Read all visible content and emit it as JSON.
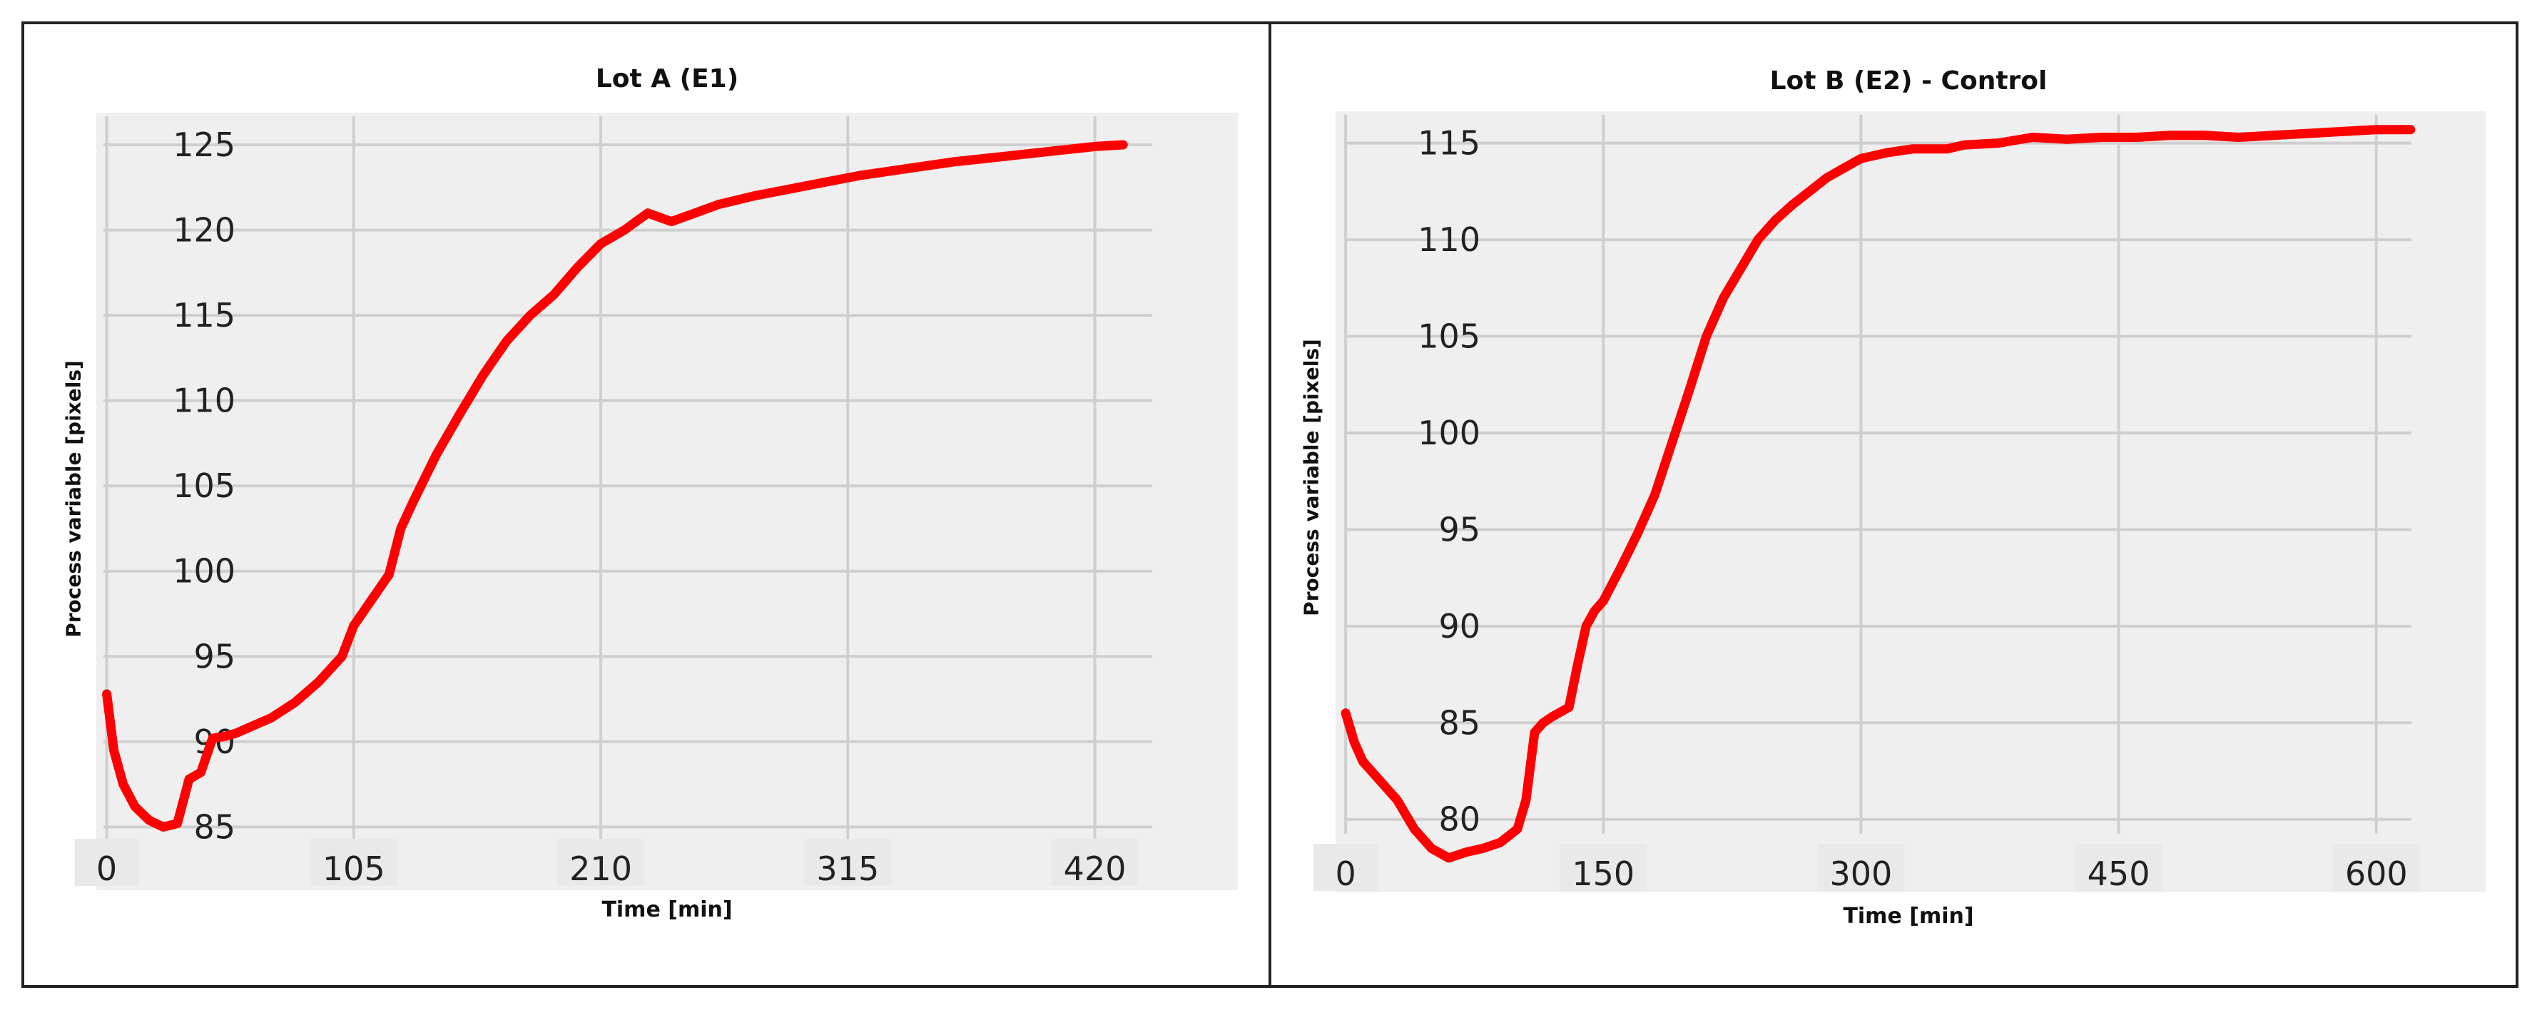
{
  "chart_data": [
    {
      "type": "line",
      "title": "Lot A (E1)",
      "xlabel": "Time [min]",
      "ylabel": "Process variable [pixels]",
      "xticks": [
        0,
        105,
        210,
        315,
        420
      ],
      "yticks": [
        85,
        90,
        95,
        100,
        105,
        110,
        115,
        120,
        125
      ],
      "xlim": [
        -12,
        455
      ],
      "ylim": [
        83.3,
        126.8
      ],
      "grid": true,
      "series": [
        {
          "color": "#ff0000",
          "x": [
            0,
            3,
            7,
            12,
            18,
            24,
            30,
            35,
            40,
            45,
            50,
            55,
            60,
            70,
            80,
            90,
            100,
            105,
            110,
            120,
            125,
            130,
            140,
            150,
            160,
            170,
            180,
            190,
            200,
            210,
            220,
            230,
            240,
            250,
            260,
            275,
            290,
            305,
            320,
            340,
            360,
            380,
            400,
            420,
            432
          ],
          "values": [
            92.8,
            89.5,
            87.5,
            86.2,
            85.4,
            85.0,
            85.2,
            87.8,
            88.2,
            90.2,
            90.3,
            90.5,
            90.8,
            91.4,
            92.3,
            93.5,
            95.0,
            96.8,
            97.8,
            99.8,
            102.5,
            104.0,
            106.8,
            109.2,
            111.5,
            113.5,
            115.0,
            116.2,
            117.8,
            119.2,
            120.0,
            121.0,
            120.5,
            121.0,
            121.5,
            122.0,
            122.4,
            122.8,
            123.2,
            123.6,
            124.0,
            124.3,
            124.6,
            124.9,
            125.0
          ]
        }
      ]
    },
    {
      "type": "line",
      "title": "Lot B (E2) - Control",
      "xlabel": "Time [min]",
      "ylabel": "Process variable [pixels]",
      "xticks": [
        0,
        150,
        300,
        450,
        600
      ],
      "yticks": [
        80,
        85,
        90,
        95,
        100,
        105,
        110,
        115
      ],
      "xlim": [
        -15,
        635
      ],
      "ylim": [
        77.0,
        116.5
      ],
      "grid": true,
      "series": [
        {
          "color": "#ff0000",
          "x": [
            0,
            5,
            10,
            20,
            30,
            40,
            50,
            60,
            70,
            80,
            90,
            100,
            105,
            110,
            115,
            120,
            130,
            135,
            140,
            145,
            150,
            160,
            170,
            180,
            190,
            200,
            210,
            220,
            230,
            240,
            250,
            260,
            270,
            280,
            290,
            300,
            315,
            330,
            350,
            360,
            380,
            400,
            420,
            440,
            460,
            480,
            500,
            520,
            540,
            560,
            580,
            600,
            620
          ],
          "values": [
            85.5,
            84.0,
            83.0,
            82.0,
            81.0,
            79.5,
            78.5,
            78.0,
            78.3,
            78.5,
            78.8,
            79.5,
            81.0,
            84.5,
            85.0,
            85.3,
            85.8,
            88.0,
            90.0,
            90.8,
            91.3,
            93.0,
            94.8,
            96.8,
            99.5,
            102.2,
            105.0,
            107.0,
            108.5,
            110.0,
            111.0,
            111.8,
            112.5,
            113.2,
            113.7,
            114.2,
            114.5,
            114.7,
            114.7,
            114.9,
            115.0,
            115.3,
            115.2,
            115.3,
            115.3,
            115.4,
            115.4,
            115.3,
            115.4,
            115.5,
            115.6,
            115.7,
            115.7
          ]
        }
      ]
    }
  ]
}
